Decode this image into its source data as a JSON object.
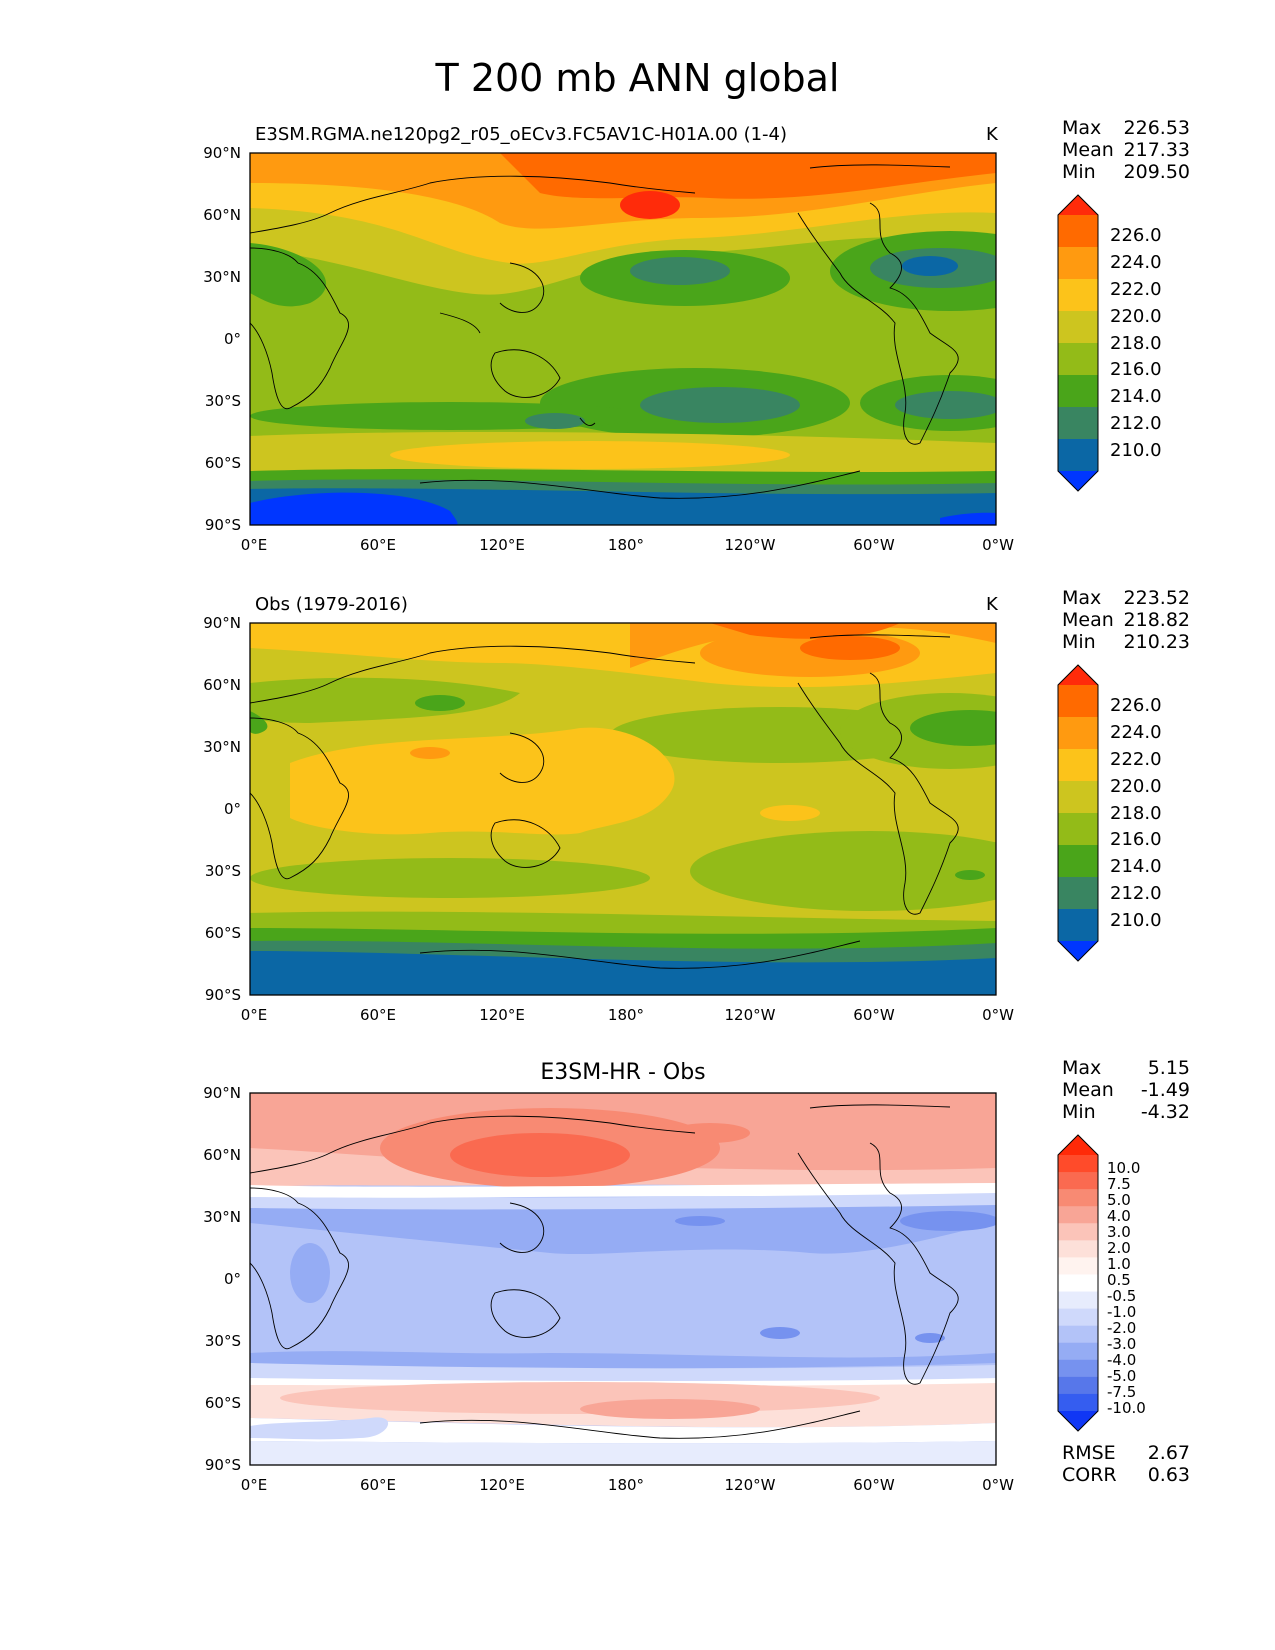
{
  "figure_title": "T 200 mb ANN global",
  "chart_data": [
    {
      "type": "heatmap",
      "map": "global equirectangular",
      "title": "E3SM.RGMA.ne120pg2_r05_oECv3.FC5AV1C-H01A.00 (1-4)",
      "units": "K",
      "stats": [
        {
          "label": "Max",
          "value": "226.53"
        },
        {
          "label": "Mean",
          "value": "217.33"
        },
        {
          "label": "Min",
          "value": "209.50"
        }
      ],
      "levels": [
        "226.0",
        "224.0",
        "222.0",
        "220.0",
        "218.0",
        "216.0",
        "214.0",
        "212.0",
        "210.0"
      ],
      "colors": [
        "#ff2b0a",
        "#ff6a00",
        "#ff9a10",
        "#fcc31a",
        "#cdc51f",
        "#93bb18",
        "#4aa51a",
        "#398561",
        "#0b67a5",
        "#0036ff"
      ],
      "x_ticks": [
        "0°E",
        "60°E",
        "120°E",
        "180°",
        "120°W",
        "60°W",
        "0°W"
      ],
      "y_ticks": [
        "90°N",
        "60°N",
        "30°N",
        "0°",
        "30°S",
        "60°S",
        "90°S"
      ]
    },
    {
      "type": "heatmap",
      "map": "global equirectangular",
      "title": "Obs (1979-2016)",
      "units": "K",
      "stats": [
        {
          "label": "Max",
          "value": "223.52"
        },
        {
          "label": "Mean",
          "value": "218.82"
        },
        {
          "label": "Min",
          "value": "210.23"
        }
      ],
      "levels": [
        "226.0",
        "224.0",
        "222.0",
        "220.0",
        "218.0",
        "216.0",
        "214.0",
        "212.0",
        "210.0"
      ],
      "colors": [
        "#ff2b0a",
        "#ff6a00",
        "#ff9a10",
        "#fcc31a",
        "#cdc51f",
        "#93bb18",
        "#4aa51a",
        "#398561",
        "#0b67a5",
        "#0036ff"
      ],
      "x_ticks": [
        "0°E",
        "60°E",
        "120°E",
        "180°",
        "120°W",
        "60°W",
        "0°W"
      ],
      "y_ticks": [
        "90°N",
        "60°N",
        "30°N",
        "0°",
        "30°S",
        "60°S",
        "90°S"
      ]
    },
    {
      "type": "heatmap",
      "map": "global equirectangular",
      "title": "E3SM-HR - Obs",
      "units": "",
      "stats": [
        {
          "label": "Max",
          "value": "5.15"
        },
        {
          "label": "Mean",
          "value": "-1.49"
        },
        {
          "label": "Min",
          "value": "-4.32"
        }
      ],
      "levels": [
        "10.0",
        "7.5",
        "5.0",
        "4.0",
        "3.0",
        "2.0",
        "1.0",
        "0.5",
        "-0.5",
        "-1.0",
        "-2.0",
        "-3.0",
        "-4.0",
        "-5.0",
        "-7.5",
        "-10.0"
      ],
      "colors": [
        "#ff2a08",
        "#ff4b2a",
        "#fa6a50",
        "#f88a73",
        "#f8a596",
        "#fbc4b9",
        "#fde0d9",
        "#fff3ef",
        "#ffffff",
        "#e7ecfd",
        "#cfd9fb",
        "#b3c3f8",
        "#95acf4",
        "#7692ef",
        "#5777ea",
        "#355df0",
        "#1037f5"
      ],
      "x_ticks": [
        "0°E",
        "60°E",
        "120°E",
        "180°",
        "120°W",
        "60°W",
        "0°W"
      ],
      "y_ticks": [
        "90°N",
        "60°N",
        "30°N",
        "0°",
        "30°S",
        "60°S",
        "90°S"
      ],
      "metrics": [
        {
          "label": "RMSE",
          "value": "2.67"
        },
        {
          "label": "CORR",
          "value": "0.63"
        }
      ]
    }
  ]
}
